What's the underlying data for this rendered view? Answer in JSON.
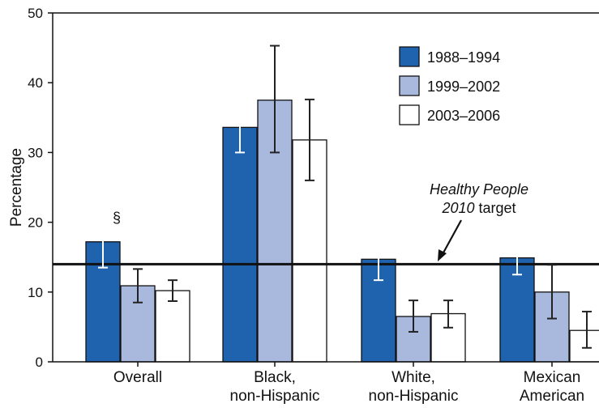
{
  "chart_data": {
    "type": "bar",
    "ylabel": "Percentage",
    "ylim": [
      0,
      50
    ],
    "yticks": [
      0,
      10,
      20,
      30,
      40,
      50
    ],
    "categories": [
      [
        "Overall"
      ],
      [
        "Black,",
        "non-Hispanic"
      ],
      [
        "White,",
        "non-Hispanic"
      ],
      [
        "Mexican",
        "American"
      ]
    ],
    "series": [
      {
        "name": "1988–1994",
        "color": "#1f63ae",
        "error_color": "#ffffff",
        "values": [
          17.2,
          33.6,
          14.7,
          14.9
        ],
        "ci_low": [
          13.5,
          30.0,
          11.7,
          12.5
        ],
        "ci_high": [
          19.7,
          37.0,
          17.9,
          17.4
        ]
      },
      {
        "name": "1999–2002",
        "color": "#a9b9de",
        "error_color": "#222222",
        "values": [
          10.9,
          37.5,
          6.5,
          10.0
        ],
        "ci_low": [
          8.5,
          30.0,
          4.3,
          6.2
        ],
        "ci_high": [
          13.3,
          45.3,
          8.8,
          13.9
        ]
      },
      {
        "name": "2003–2006",
        "color": "#ffffff",
        "error_color": "#222222",
        "values": [
          10.2,
          31.8,
          6.9,
          4.5
        ],
        "ci_low": [
          8.7,
          26.0,
          4.9,
          2.0
        ],
        "ci_high": [
          11.7,
          37.6,
          8.8,
          7.2
        ]
      }
    ],
    "target": {
      "value": 14.0,
      "label_pre": "Healthy People",
      "label_italic": "2010",
      "label_post": "target"
    },
    "annotations": [
      {
        "text": "§",
        "category_index": 0,
        "series_index": 0
      }
    ],
    "legend_position": "top-right",
    "grid": false
  }
}
